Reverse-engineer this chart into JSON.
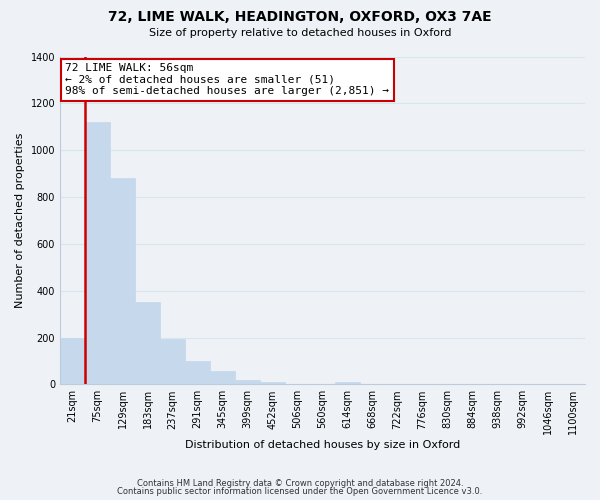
{
  "title": "72, LIME WALK, HEADINGTON, OXFORD, OX3 7AE",
  "subtitle": "Size of property relative to detached houses in Oxford",
  "xlabel": "Distribution of detached houses by size in Oxford",
  "ylabel": "Number of detached properties",
  "footnote1": "Contains HM Land Registry data © Crown copyright and database right 2024.",
  "footnote2": "Contains public sector information licensed under the Open Government Licence v3.0.",
  "bar_labels": [
    "21sqm",
    "75sqm",
    "129sqm",
    "183sqm",
    "237sqm",
    "291sqm",
    "345sqm",
    "399sqm",
    "452sqm",
    "506sqm",
    "560sqm",
    "614sqm",
    "668sqm",
    "722sqm",
    "776sqm",
    "830sqm",
    "884sqm",
    "938sqm",
    "992sqm",
    "1046sqm",
    "1100sqm"
  ],
  "bar_values": [
    200,
    1120,
    880,
    350,
    193,
    100,
    55,
    20,
    10,
    0,
    0,
    10,
    0,
    0,
    0,
    0,
    0,
    0,
    0,
    0,
    0
  ],
  "bar_color": "#c5d8ec",
  "property_line_x": 0.5,
  "property_line_color": "#cc0000",
  "ylim": [
    0,
    1400
  ],
  "yticks": [
    0,
    200,
    400,
    600,
    800,
    1000,
    1200,
    1400
  ],
  "annotation_text": "72 LIME WALK: 56sqm\n← 2% of detached houses are smaller (51)\n98% of semi-detached houses are larger (2,851) →",
  "annotation_box_color": "#ffffff",
  "annotation_box_edgecolor": "#cc0000",
  "grid_color": "#d8e4f0",
  "background_color": "#eef2f7",
  "title_fontsize": 10,
  "subtitle_fontsize": 8,
  "xlabel_fontsize": 8,
  "ylabel_fontsize": 8,
  "tick_fontsize": 7,
  "annotation_fontsize": 8,
  "footnote_fontsize": 6
}
